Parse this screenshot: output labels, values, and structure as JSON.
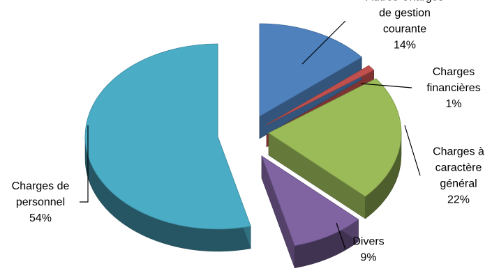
{
  "chart_data": {
    "type": "pie",
    "style": "3d-exploded",
    "title": "",
    "legend": "none",
    "slices": [
      {
        "label_lines": [
          "Autres Charges",
          "de gestion",
          "courante"
        ],
        "percent_label": "14%",
        "value": 14,
        "color": "#4F81BD"
      },
      {
        "label_lines": [
          "Charges",
          "financières"
        ],
        "percent_label": "1%",
        "value": 1,
        "color": "#C0504D"
      },
      {
        "label_lines": [
          "Charges à",
          "caractère",
          "général"
        ],
        "percent_label": "22%",
        "value": 22,
        "color": "#9BBB59"
      },
      {
        "label_lines": [
          "Divers"
        ],
        "percent_label": "9%",
        "value": 9,
        "color": "#8064A2"
      },
      {
        "label_lines": [
          "Charges de",
          "personnel"
        ],
        "percent_label": "54%",
        "value": 54,
        "color": "#4BACC6"
      }
    ]
  }
}
